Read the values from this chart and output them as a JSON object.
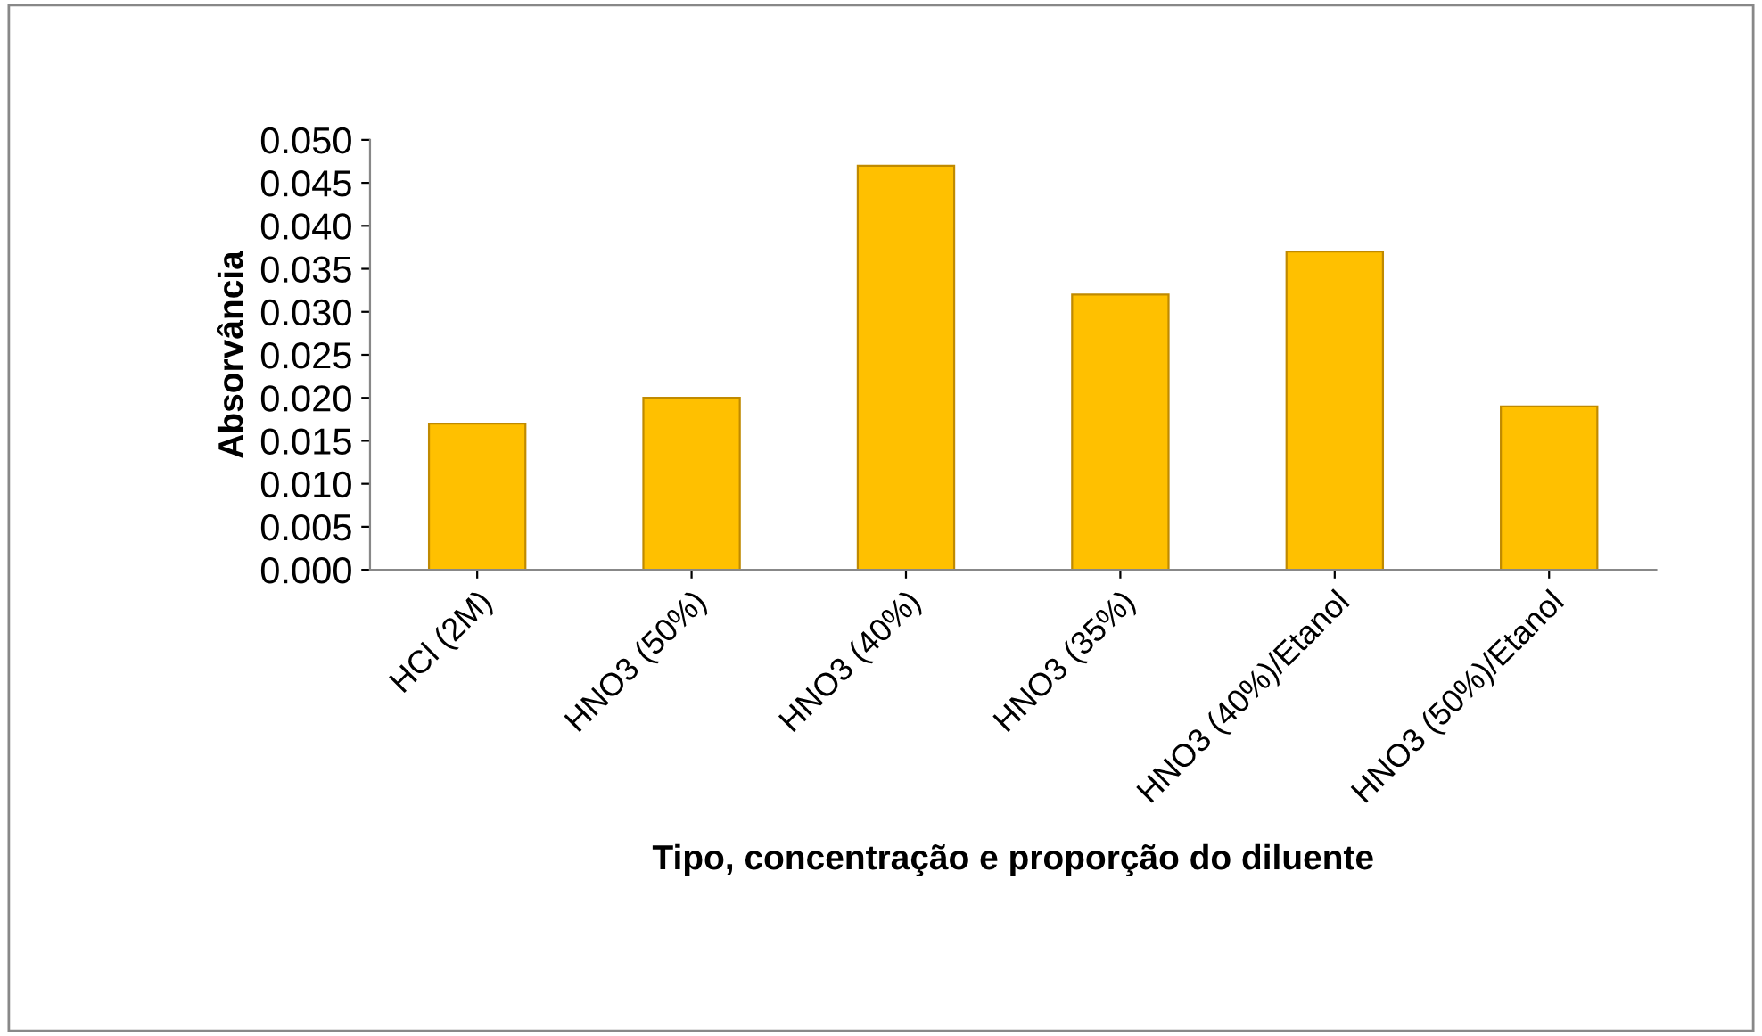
{
  "chart_data": {
    "type": "bar",
    "xlabel": "Tipo, concentração e proporção do diluente",
    "ylabel": "Absorvância",
    "categories": [
      "HCl (2M)",
      "HNO3 (50%)",
      "HNO3 (40%)",
      "HNO3 (35%)",
      "HNO3 (40%)/Etanol",
      "HNO3 (50%)/Etanol"
    ],
    "values": [
      0.017,
      0.02,
      0.047,
      0.032,
      0.037,
      0.019
    ],
    "color": "#ffc000",
    "ylim": [
      0,
      0.05
    ],
    "yticks": [
      {
        "value": 0,
        "label": "0.000"
      },
      {
        "value": 0.005,
        "label": "0.005"
      },
      {
        "value": 0.01,
        "label": "0.010"
      },
      {
        "value": 0.015,
        "label": "0.015"
      },
      {
        "value": 0.02,
        "label": "0.020"
      },
      {
        "value": 0.025,
        "label": "0.025"
      },
      {
        "value": 0.03,
        "label": "0.030"
      },
      {
        "value": 0.035,
        "label": "0.035"
      },
      {
        "value": 0.04,
        "label": "0.040"
      },
      {
        "value": 0.045,
        "label": "0.045"
      },
      {
        "value": 0.05,
        "label": "0.050"
      }
    ],
    "grid": false
  }
}
